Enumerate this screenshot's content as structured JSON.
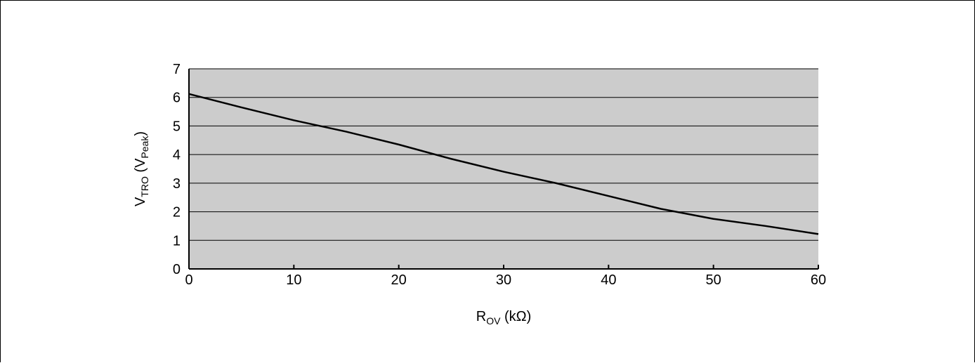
{
  "chart_data": {
    "type": "line",
    "xlim": [
      0,
      60
    ],
    "ylim": [
      0,
      7
    ],
    "xticks": [
      0,
      10,
      20,
      30,
      40,
      50,
      60
    ],
    "yticks": [
      0,
      1,
      2,
      3,
      4,
      5,
      6,
      7
    ],
    "x_tick_labels": [
      "0",
      "10",
      "20",
      "30",
      "40",
      "50",
      "60"
    ],
    "y_tick_labels": [
      "0",
      "1",
      "2",
      "3",
      "4",
      "5",
      "6",
      "7"
    ],
    "xlabel": {
      "main": "R",
      "sub": "OV",
      "suffix": " (kΩ)"
    },
    "ylabel": {
      "main": "V",
      "sub": "TRO",
      "mid": " (V",
      "sub2": "Peak",
      "suffix": ")"
    },
    "grid": "horizontal",
    "colors": {
      "plot_background": "#cccccc",
      "line": "#000000",
      "gridlines": "#000000"
    },
    "series": [
      {
        "x": [
          0,
          5,
          10,
          15,
          20,
          25,
          30,
          35,
          40,
          45,
          50,
          55,
          60
        ],
        "y": [
          6.12,
          5.65,
          5.2,
          4.8,
          4.35,
          3.85,
          3.4,
          3.0,
          2.55,
          2.1,
          1.75,
          1.5,
          1.22
        ]
      }
    ]
  }
}
